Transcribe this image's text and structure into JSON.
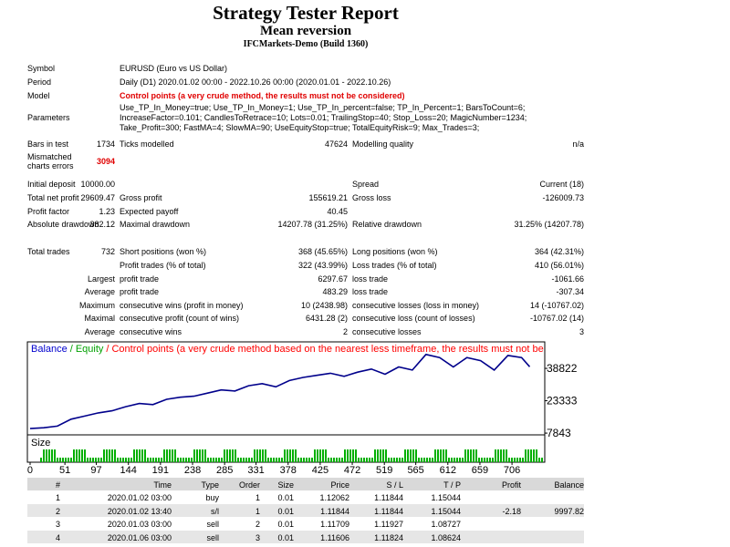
{
  "header": {
    "title": "Strategy Tester Report",
    "subtitle": "Mean reversion",
    "server": "IFCMarkets-Demo (Build 1360)"
  },
  "info": [
    {
      "label": "Symbol",
      "text": "EURUSD (Euro vs US Dollar)"
    },
    {
      "label": "Period",
      "text": "Daily (D1) 2020.01.02 00:00 - 2022.10.26 00:00 (2020.01.01 - 2022.10.26)"
    },
    {
      "label": "Model",
      "text": "Control points (a very crude method, the results must not be considered)",
      "warning": true
    },
    {
      "label": "Parameters",
      "text": "Use_TP_In_Money=true; Use_TP_In_Money=1; Use_TP_In_percent=false; TP_In_Percent=1; BarsToCount=6; IncreaseFactor=0.101; CandlesToRetrace=10; Lots=0.01; TrailingStop=40; Stop_Loss=20; MagicNumber=1234; Take_Profit=300; FastMA=4; SlowMA=90; UseEquityStop=true; TotalEquityRisk=9; Max_Trades=3;"
    }
  ],
  "stats": [
    {
      "label": "Bars in test",
      "value": "1734",
      "label2": "Ticks modelled",
      "value2": "47624",
      "label3": "Modelling quality",
      "value3": "n/a"
    },
    {
      "label": "Mismatched charts errors",
      "value": "3094",
      "warning": true
    },
    {
      "label": "Initial deposit",
      "value": "10000.00",
      "label3": "Spread",
      "value3": "Current (18)"
    },
    {
      "label": "Total net profit",
      "value": "29609.47",
      "label2": "Gross profit",
      "value2": "155619.21",
      "label3": "Gross loss",
      "value3": "-126009.73"
    },
    {
      "label": "Profit factor",
      "value": "1.23",
      "label2": "Expected payoff",
      "value2": "40.45"
    },
    {
      "label": "Absolute drawdown",
      "value": "382.12",
      "label2": "Maximal drawdown",
      "value2": "14207.78 (31.25%)",
      "label3": "Relative drawdown",
      "value3": "31.25% (14207.78)"
    },
    {
      "label": "Total trades",
      "value": "732",
      "label2": "Short positions (won %)",
      "value2": "368 (45.65%)",
      "label3": "Long positions (won %)",
      "value3": "364 (42.31%)"
    },
    {
      "label2": "Profit trades (% of total)",
      "value2": "322 (43.99%)",
      "label3": "Loss trades (% of total)",
      "value3": "410 (56.01%)"
    },
    {
      "prefix": "Largest",
      "label2": "profit trade",
      "value2": "6297.67",
      "label3": "loss trade",
      "value3": "-1061.66"
    },
    {
      "prefix": "Average",
      "label2": "profit trade",
      "value2": "483.29",
      "label3": "loss trade",
      "value3": "-307.34"
    },
    {
      "prefix": "Maximum",
      "label2": "consecutive wins (profit in money)",
      "value2": "10 (2438.98)",
      "label3": "consecutive losses (loss in money)",
      "value3": "14 (-10767.02)"
    },
    {
      "prefix": "Maximal",
      "label2": "consecutive profit (count of wins)",
      "value2": "6431.28 (2)",
      "label3": "consecutive loss (count of losses)",
      "value3": "-10767.02 (14)"
    },
    {
      "prefix": "Average",
      "label2": "consecutive wins",
      "value2": "2",
      "label3": "consecutive losses",
      "value3": "3"
    }
  ],
  "chart_data": {
    "type": "line",
    "legend": [
      {
        "name": "Balance",
        "color": "#0000cd"
      },
      {
        "name": "Equity",
        "color": "#00a000"
      },
      {
        "name": "Control points (a very crude method based on the nearest less timeframe, the results must not be considered)",
        "color": "#ff0000"
      }
    ],
    "legend_separator": "/",
    "x": [
      0,
      20,
      40,
      60,
      80,
      100,
      120,
      140,
      160,
      180,
      200,
      220,
      240,
      260,
      280,
      300,
      320,
      340,
      360,
      380,
      400,
      420,
      440,
      460,
      480,
      500,
      520,
      540,
      560,
      580,
      600,
      620,
      640,
      660,
      680,
      700,
      720,
      732
    ],
    "values": [
      10000,
      10400,
      11200,
      14500,
      16000,
      17500,
      18500,
      20500,
      22000,
      21500,
      24000,
      25000,
      25500,
      27000,
      28500,
      28000,
      30500,
      31500,
      30000,
      33000,
      34500,
      35500,
      36500,
      35000,
      37000,
      38500,
      36000,
      39500,
      38000,
      45500,
      44000,
      39500,
      44000,
      42500,
      38000,
      45000,
      44000,
      39609.47
    ],
    "color": "#00008b",
    "xlim": [
      -4,
      754
    ],
    "ylim": [
      7000,
      51500
    ],
    "xticks": [
      0,
      51,
      97,
      144,
      191,
      238,
      285,
      331,
      378,
      425,
      472,
      519,
      565,
      612,
      659,
      706
    ],
    "yticks": [
      7843,
      23333,
      38822
    ],
    "size_label": "Size"
  },
  "trades": {
    "columns": [
      "#",
      "Time",
      "Type",
      "Order",
      "Size",
      "Price",
      "S / L",
      "T / P",
      "Profit",
      "Balance"
    ],
    "rows": [
      [
        "1",
        "2020.01.02 03:00",
        "buy",
        "1",
        "0.01",
        "1.12062",
        "1.11844",
        "1.15044",
        null,
        null
      ],
      [
        "2",
        "2020.01.02 13:40",
        "s/l",
        "1",
        "0.01",
        "1.11844",
        "1.11844",
        "1.15044",
        "-2.18",
        "9997.82"
      ],
      [
        "3",
        "2020.01.03 03:00",
        "sell",
        "2",
        "0.01",
        "1.11709",
        "1.11927",
        "1.08727",
        null,
        null
      ],
      [
        "4",
        "2020.01.06 03:00",
        "sell",
        "3",
        "0.01",
        "1.11606",
        "1.11824",
        "1.08624",
        null,
        null
      ]
    ]
  }
}
